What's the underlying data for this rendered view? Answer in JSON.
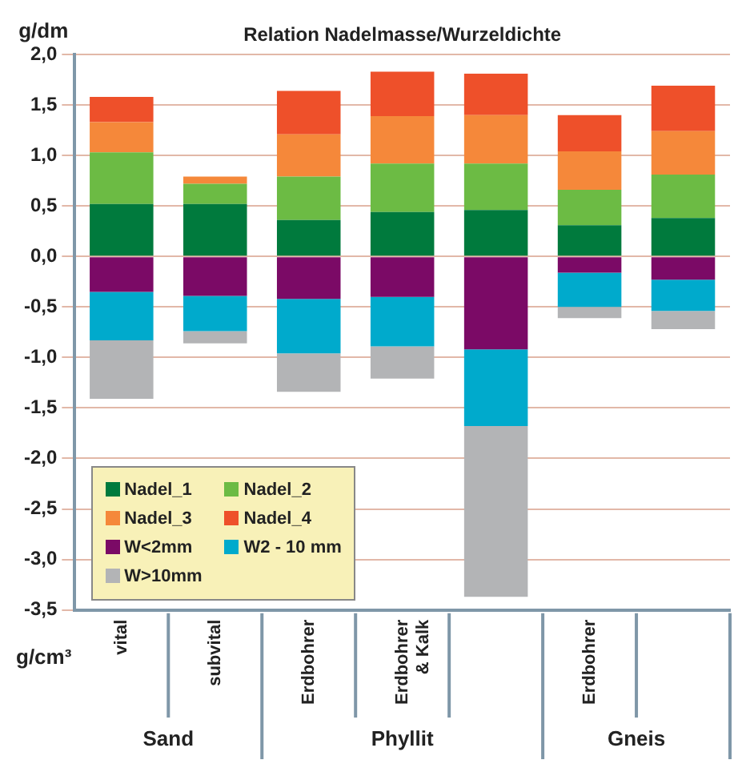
{
  "chart_data": {
    "type": "bar",
    "title": "Relation Nadelmasse/Wurzeldichte",
    "ylabel": "g/dm",
    "xlabel": "g/cm³",
    "categories": [
      "vital",
      "subvital",
      "Erdbohrer",
      "Erdbohrer & Kalk",
      null,
      "Erdbohrer",
      null
    ],
    "annotations": [
      "Sand",
      "Phyllit",
      "Gneis"
    ],
    "stacked": true,
    "ylim": [
      -3.5,
      2.0
    ],
    "yticks": [
      {
        "value": -3.5,
        "label": "-3,5"
      },
      {
        "value": -3,
        "label": "-3,0"
      },
      {
        "value": -2.5,
        "label": "-2,5"
      },
      {
        "value": -2,
        "label": "-2,0"
      },
      {
        "value": -1.5,
        "label": "-1,5"
      },
      {
        "value": -1,
        "label": "-1,0"
      },
      {
        "value": -0.5,
        "label": "-0,5"
      },
      {
        "value": 0,
        "label": "0,0"
      },
      {
        "value": 0.5,
        "label": "0,5"
      },
      {
        "value": 1,
        "label": "1,0"
      },
      {
        "value": 1.5,
        "label": "1,5"
      },
      {
        "value": 2,
        "label": "2,0"
      }
    ],
    "grid": "y",
    "legend": "bottom left",
    "series": [
      {
        "name": "Nadel_1",
        "color": "#007a3d",
        "values": [
          0.52,
          0.52,
          0.36,
          0.44,
          0.46,
          0.31,
          0.38
        ]
      },
      {
        "name": "Nadel_2",
        "color": "#6cbb44",
        "values": [
          0.51,
          0.2,
          0.43,
          0.48,
          0.46,
          0.35,
          0.43
        ]
      },
      {
        "name": "Nadel_3",
        "color": "#f5883a",
        "values": [
          0.3,
          0.07,
          0.42,
          0.47,
          0.48,
          0.38,
          0.43
        ]
      },
      {
        "name": "Nadel_4",
        "color": "#ee502a",
        "values": [
          0.25,
          0,
          0.43,
          0.44,
          0.41,
          0.36,
          0.45
        ]
      },
      {
        "name": "W<2mm",
        "color": "#7b0a66",
        "values": [
          -0.35,
          -0.39,
          -0.42,
          -0.4,
          -0.92,
          -0.16,
          -0.23
        ]
      },
      {
        "name": "W2 - 10 mm",
        "color": "#00aacc",
        "values": [
          -0.48,
          -0.35,
          -0.54,
          -0.49,
          -0.76,
          -0.34,
          -0.31
        ]
      },
      {
        "name": "W>10mm",
        "color": "#b3b4b6",
        "values": [
          -0.58,
          -0.12,
          -0.38,
          -0.32,
          -1.69,
          -0.11,
          -0.18
        ]
      }
    ]
  }
}
